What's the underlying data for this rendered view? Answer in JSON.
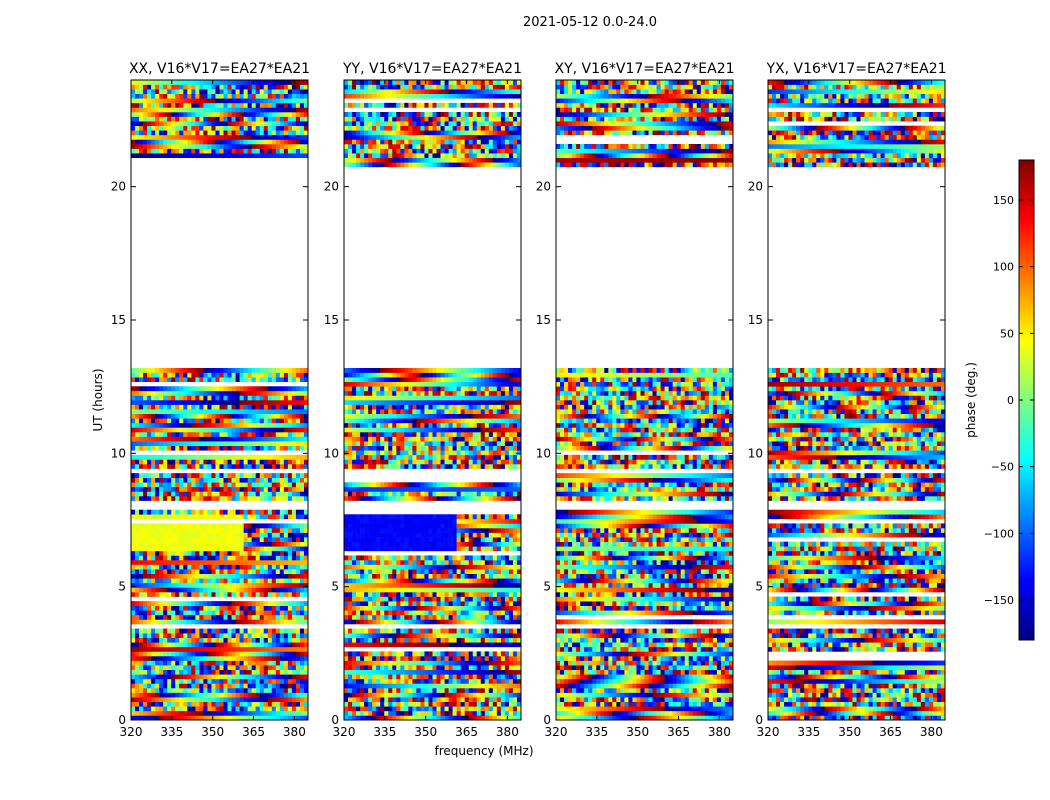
{
  "figure_title": "2021-05-12 0.0-24.0",
  "xlabel": "frequency (MHz)",
  "ylabel": "UT (hours)",
  "chart_data": {
    "type": "heatmap",
    "title": "2021-05-12 0.0-24.0",
    "xlabel": "frequency (MHz)",
    "ylabel": "UT (hours)",
    "xlim": [
      320,
      385
    ],
    "ylim": [
      0,
      24
    ],
    "x_ticks": [
      320,
      335,
      350,
      365,
      380
    ],
    "y_ticks": [
      0,
      5,
      10,
      15,
      20
    ],
    "panels": [
      {
        "title": "XX, V16*V17=EA27*EA21",
        "distinct_band": {
          "hours": [
            6.4,
            7.8
          ],
          "phase_deg": 40,
          "note": "smooth phase below ~360 MHz"
        }
      },
      {
        "title": "YY, V16*V17=EA27*EA21",
        "distinct_band": {
          "hours": [
            6.4,
            7.8
          ],
          "phase_deg": -135,
          "note": "smooth phase below ~360 MHz"
        }
      },
      {
        "title": "XY, V16*V17=EA27*EA21"
      },
      {
        "title": "YX, V16*V17=EA27*EA21"
      }
    ],
    "data_gaps_hours": [
      [
        13.2,
        20.8
      ],
      [
        3.4,
        3.6
      ],
      [
        9.2,
        9.4
      ],
      [
        7.85,
        8.15
      ]
    ],
    "colorbar": {
      "label": "phase (deg.)",
      "colormap": "jet",
      "range": [
        -180,
        180
      ],
      "ticks": [
        150,
        100,
        50,
        0,
        -50,
        -100,
        -150
      ],
      "tick_labels": [
        "150",
        "100",
        "50",
        "0",
        "−50",
        "−100",
        "−150"
      ]
    }
  }
}
